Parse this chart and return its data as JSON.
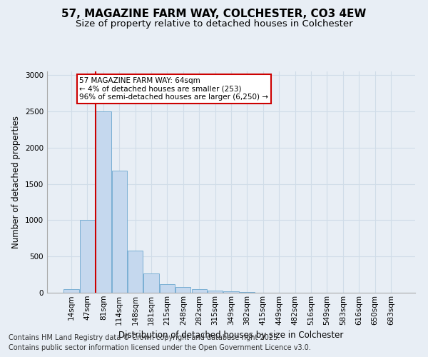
{
  "title_line1": "57, MAGAZINE FARM WAY, COLCHESTER, CO3 4EW",
  "title_line2": "Size of property relative to detached houses in Colchester",
  "xlabel": "Distribution of detached houses by size in Colchester",
  "ylabel": "Number of detached properties",
  "categories": [
    "14sqm",
    "47sqm",
    "81sqm",
    "114sqm",
    "148sqm",
    "181sqm",
    "215sqm",
    "248sqm",
    "282sqm",
    "315sqm",
    "349sqm",
    "382sqm",
    "415sqm",
    "449sqm",
    "482sqm",
    "516sqm",
    "549sqm",
    "583sqm",
    "616sqm",
    "650sqm",
    "683sqm"
  ],
  "values": [
    50,
    1000,
    2500,
    1680,
    580,
    270,
    120,
    75,
    50,
    30,
    15,
    8,
    0,
    3,
    0,
    0,
    0,
    0,
    0,
    0,
    0
  ],
  "bar_color": "#c5d8ee",
  "bar_edge_color": "#7aafd4",
  "vline_x_index": 2,
  "vline_color": "#cc0000",
  "annotation_text": "57 MAGAZINE FARM WAY: 64sqm\n← 4% of detached houses are smaller (253)\n96% of semi-detached houses are larger (6,250) →",
  "annotation_box_facecolor": "#ffffff",
  "annotation_box_edgecolor": "#cc0000",
  "ylim": [
    0,
    3050
  ],
  "yticks": [
    0,
    500,
    1000,
    1500,
    2000,
    2500,
    3000
  ],
  "grid_color": "#d0dce8",
  "bg_color": "#e8eef5",
  "title_fontsize": 11,
  "subtitle_fontsize": 9.5,
  "ylabel_fontsize": 8.5,
  "xlabel_fontsize": 8.5,
  "tick_fontsize": 7.5,
  "annot_fontsize": 7.5,
  "footnote_fontsize": 7,
  "footnote_line1": "Contains HM Land Registry data © Crown copyright and database right 2025.",
  "footnote_line2": "Contains public sector information licensed under the Open Government Licence v3.0."
}
